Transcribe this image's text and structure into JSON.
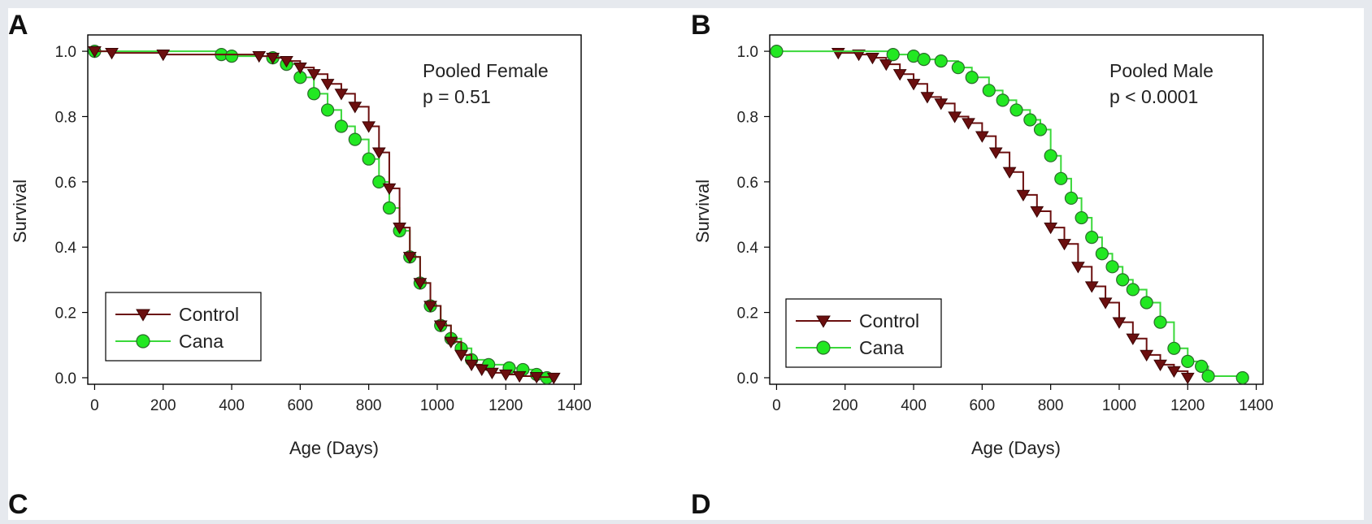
{
  "figure": {
    "lower_panels": [
      {
        "letter": "C"
      },
      {
        "letter": "D"
      }
    ]
  },
  "colors": {
    "control": "#6b0f0f",
    "cana": "#22e822",
    "cana_line": "#3ad83a"
  },
  "chart_data": [
    {
      "type": "line",
      "panel_letter": "A",
      "annotation_lines": [
        "Pooled Female",
        "p = 0.51"
      ],
      "xlabel": "Age (Days)",
      "ylabel": "Survival",
      "xlim": [
        -20,
        1420
      ],
      "ylim": [
        -0.02,
        1.05
      ],
      "xticks": [
        0,
        200,
        400,
        600,
        800,
        1000,
        1200,
        1400
      ],
      "yticks": [
        0.0,
        0.2,
        0.4,
        0.6,
        0.8,
        1.0
      ],
      "ytick_labels": [
        "0.0",
        "0.2",
        "0.4",
        "0.6",
        "0.8",
        "1.0"
      ],
      "grid": false,
      "legend_position": "bottom-left",
      "series": [
        {
          "name": "Control",
          "marker": "triangle-down",
          "x": [
            0,
            50,
            200,
            480,
            520,
            560,
            600,
            640,
            680,
            720,
            760,
            800,
            830,
            860,
            890,
            920,
            950,
            980,
            1010,
            1040,
            1070,
            1100,
            1130,
            1160,
            1200,
            1240,
            1290,
            1340
          ],
          "y": [
            1.0,
            0.995,
            0.99,
            0.985,
            0.98,
            0.97,
            0.95,
            0.93,
            0.9,
            0.87,
            0.83,
            0.77,
            0.69,
            0.58,
            0.46,
            0.37,
            0.29,
            0.22,
            0.16,
            0.11,
            0.07,
            0.04,
            0.025,
            0.015,
            0.01,
            0.005,
            0.002,
            0.0
          ]
        },
        {
          "name": "Cana",
          "marker": "circle",
          "x": [
            0,
            370,
            400,
            520,
            560,
            600,
            640,
            680,
            720,
            760,
            800,
            830,
            860,
            890,
            920,
            950,
            980,
            1010,
            1040,
            1070,
            1100,
            1150,
            1210,
            1250,
            1290,
            1320
          ],
          "y": [
            1.0,
            0.99,
            0.985,
            0.98,
            0.96,
            0.92,
            0.87,
            0.82,
            0.77,
            0.73,
            0.67,
            0.6,
            0.52,
            0.45,
            0.37,
            0.29,
            0.22,
            0.16,
            0.12,
            0.09,
            0.055,
            0.04,
            0.03,
            0.025,
            0.01,
            0.0
          ]
        }
      ]
    },
    {
      "type": "line",
      "panel_letter": "B",
      "annotation_lines": [
        "Pooled Male",
        "p < 0.0001"
      ],
      "xlabel": "Age (Days)",
      "ylabel": "Survival",
      "xlim": [
        -20,
        1420
      ],
      "ylim": [
        -0.02,
        1.05
      ],
      "xticks": [
        0,
        200,
        400,
        600,
        800,
        1000,
        1200,
        1400
      ],
      "yticks": [
        0.0,
        0.2,
        0.4,
        0.6,
        0.8,
        1.0
      ],
      "ytick_labels": [
        "0.0",
        "0.2",
        "0.4",
        "0.6",
        "0.8",
        "1.0"
      ],
      "grid": false,
      "legend_position": "bottom-left",
      "series": [
        {
          "name": "Control",
          "marker": "triangle-down",
          "x": [
            180,
            240,
            280,
            320,
            360,
            400,
            440,
            480,
            520,
            560,
            600,
            640,
            680,
            720,
            760,
            800,
            840,
            880,
            920,
            960,
            1000,
            1040,
            1080,
            1120,
            1160,
            1200
          ],
          "y": [
            0.995,
            0.99,
            0.98,
            0.96,
            0.93,
            0.9,
            0.86,
            0.84,
            0.8,
            0.78,
            0.74,
            0.69,
            0.63,
            0.56,
            0.51,
            0.46,
            0.41,
            0.34,
            0.28,
            0.23,
            0.17,
            0.12,
            0.07,
            0.04,
            0.02,
            0.0
          ]
        },
        {
          "name": "Cana",
          "marker": "circle",
          "x": [
            0,
            340,
            400,
            430,
            480,
            530,
            570,
            620,
            660,
            700,
            740,
            770,
            800,
            830,
            860,
            890,
            920,
            950,
            980,
            1010,
            1040,
            1080,
            1120,
            1160,
            1200,
            1240,
            1260,
            1360
          ],
          "y": [
            1.0,
            0.99,
            0.985,
            0.975,
            0.97,
            0.95,
            0.92,
            0.88,
            0.85,
            0.82,
            0.79,
            0.76,
            0.68,
            0.61,
            0.55,
            0.49,
            0.43,
            0.38,
            0.34,
            0.3,
            0.27,
            0.23,
            0.17,
            0.09,
            0.05,
            0.035,
            0.005,
            0.0
          ]
        }
      ]
    }
  ]
}
